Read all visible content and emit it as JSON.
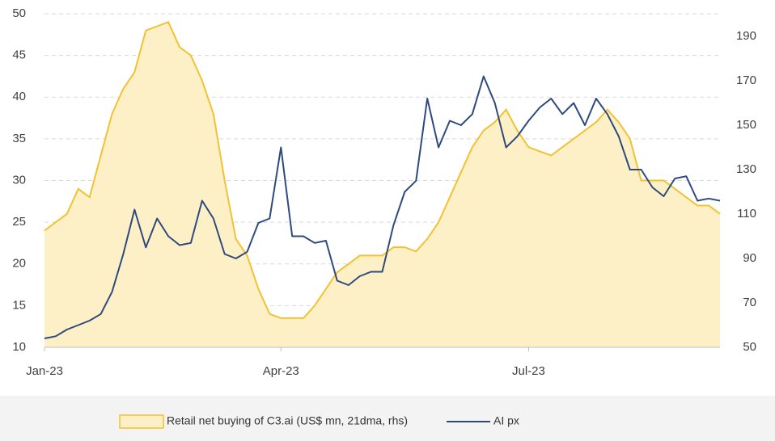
{
  "chart_data": {
    "type": "line",
    "categories": [
      "Jan-23",
      null,
      null,
      null,
      null,
      null,
      null,
      null,
      null,
      null,
      null,
      null,
      null,
      null,
      null,
      null,
      null,
      null,
      null,
      null,
      null,
      "Apr-23",
      null,
      null,
      null,
      null,
      null,
      null,
      null,
      null,
      null,
      null,
      null,
      null,
      null,
      null,
      null,
      null,
      null,
      null,
      null,
      null,
      null,
      "Jul-23",
      null,
      null,
      null,
      null,
      null,
      null,
      null,
      null,
      null,
      null,
      null,
      null,
      null,
      null,
      null,
      null,
      null
    ],
    "series": [
      {
        "name": "Retail net buying of C3.ai (US$ mn, 21dma, rhs)",
        "color": "#f2c233",
        "fill": "#fdf0c6",
        "area": true,
        "values": [
          24,
          25,
          26,
          29,
          28,
          33,
          38,
          41,
          43,
          48,
          48.5,
          49,
          46,
          45,
          42,
          38,
          30,
          23,
          21,
          17,
          14,
          13.5,
          13.5,
          13.5,
          15,
          17,
          19,
          20,
          21,
          21,
          21,
          22,
          22,
          21.5,
          23,
          25,
          28,
          31,
          34,
          36,
          37,
          38.5,
          36,
          34,
          33.5,
          33,
          34,
          35,
          36,
          37,
          38.5,
          37,
          35,
          30,
          30,
          30,
          29,
          28,
          27,
          27,
          26
        ]
      },
      {
        "name": "AI px",
        "color": "#2e4a7d",
        "axis": "y2",
        "values": [
          54,
          55,
          58,
          60,
          62,
          65,
          75,
          92,
          112,
          95,
          108,
          100,
          96,
          97,
          116,
          108,
          92,
          90,
          93,
          106,
          108,
          140,
          100,
          100,
          97,
          98,
          80,
          78,
          82,
          84,
          84,
          105,
          120,
          125,
          162,
          140,
          152,
          150,
          155,
          172,
          160,
          140,
          145,
          152,
          158,
          162,
          155,
          160,
          150,
          162,
          155,
          145,
          130,
          130,
          122,
          118,
          126,
          127,
          116,
          117,
          116
        ]
      }
    ],
    "ylim": [
      10,
      50
    ],
    "yticks": [
      10,
      15,
      20,
      25,
      30,
      35,
      40,
      45,
      50
    ],
    "y2lim": [
      50,
      190
    ],
    "y2ticks": [
      50,
      70,
      90,
      110,
      130,
      150,
      170,
      190
    ],
    "grid": true,
    "legend": "bottom"
  }
}
